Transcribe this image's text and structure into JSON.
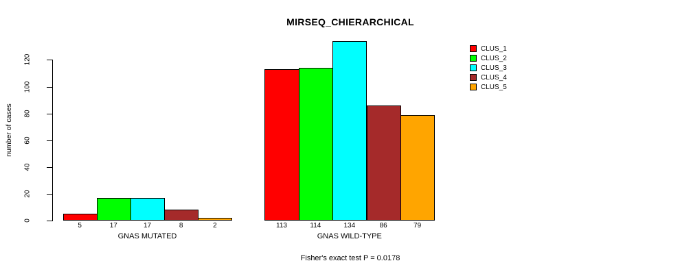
{
  "chart_data": {
    "type": "bar",
    "title": "MIRSEQ_CHIERARCHICAL",
    "ylabel": "number of cases",
    "xlabel": "",
    "ylim": [
      0,
      120
    ],
    "yticks": [
      0,
      20,
      40,
      60,
      80,
      100,
      120
    ],
    "grid": false,
    "legend_position": "right",
    "series": [
      {
        "name": "CLUS_1",
        "color": "#FF0000"
      },
      {
        "name": "CLUS_2",
        "color": "#00FF00"
      },
      {
        "name": "CLUS_3",
        "color": "#00FFFF"
      },
      {
        "name": "CLUS_4",
        "color": "#A52A2A"
      },
      {
        "name": "CLUS_5",
        "color": "#FFA500"
      }
    ],
    "groups": [
      {
        "label": "GNAS MUTATED",
        "values": [
          5,
          17,
          17,
          8,
          2
        ]
      },
      {
        "label": "GNAS WILD-TYPE",
        "values": [
          113,
          114,
          134,
          86,
          79
        ]
      }
    ],
    "footnote": "Fisher's exact test P = 0.0178",
    "bar_border_color": "#000000",
    "axis_color": "#000000"
  }
}
